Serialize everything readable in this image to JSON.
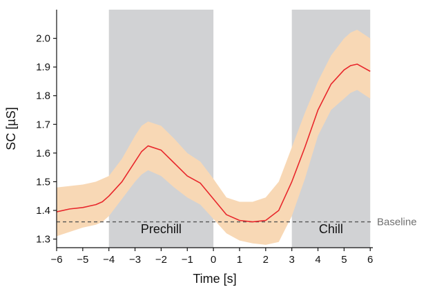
{
  "chart_data": {
    "type": "line",
    "title": "",
    "xlabel": "Time [s]",
    "ylabel": "SC [µS]",
    "xlim": [
      -6,
      6.1
    ],
    "ylim": [
      1.27,
      2.1
    ],
    "xticks": [
      -6,
      -5,
      -4,
      -3,
      -2,
      -1,
      0,
      1,
      2,
      3,
      4,
      5,
      6
    ],
    "xtick_labels": [
      "−6",
      "−5",
      "−4",
      "−3",
      "−2",
      "−1",
      "0",
      "1",
      "2",
      "3",
      "4",
      "5",
      "6"
    ],
    "yticks": [
      1.3,
      1.4,
      1.5,
      1.6,
      1.7,
      1.8,
      1.9,
      2.0
    ],
    "ytick_labels": [
      "1.3",
      "1.4",
      "1.5",
      "1.6",
      "1.7",
      "1.8",
      "1.9",
      "2.0"
    ],
    "grid": false,
    "shaded_regions": [
      {
        "label": "Prechill",
        "x_start": -4,
        "x_end": 0
      },
      {
        "label": "Chill",
        "x_start": 3,
        "x_end": 6
      }
    ],
    "baseline": {
      "label": "Baseline",
      "value": 1.36
    },
    "series": [
      {
        "x": [
          -6,
          -5.5,
          -5,
          -4.5,
          -4.25,
          -4,
          -3.5,
          -3,
          -2.75,
          -2.5,
          -2,
          -1.5,
          -1,
          -0.5,
          0,
          0.5,
          1,
          1.5,
          2,
          2.5,
          3,
          3.5,
          4,
          4.5,
          5,
          5.25,
          5.5,
          6
        ],
        "values": [
          1.395,
          1.405,
          1.41,
          1.42,
          1.43,
          1.45,
          1.5,
          1.57,
          1.605,
          1.625,
          1.61,
          1.565,
          1.52,
          1.495,
          1.44,
          1.385,
          1.365,
          1.36,
          1.365,
          1.4,
          1.5,
          1.62,
          1.75,
          1.84,
          1.89,
          1.905,
          1.91,
          1.885
        ],
        "ci_lower": [
          1.31,
          1.325,
          1.34,
          1.35,
          1.36,
          1.38,
          1.44,
          1.5,
          1.525,
          1.54,
          1.52,
          1.48,
          1.445,
          1.42,
          1.37,
          1.32,
          1.295,
          1.285,
          1.28,
          1.29,
          1.38,
          1.51,
          1.66,
          1.75,
          1.79,
          1.81,
          1.82,
          1.79
        ],
        "ci_upper": [
          1.48,
          1.485,
          1.49,
          1.5,
          1.51,
          1.52,
          1.58,
          1.66,
          1.695,
          1.71,
          1.695,
          1.65,
          1.6,
          1.57,
          1.51,
          1.445,
          1.43,
          1.43,
          1.445,
          1.5,
          1.62,
          1.74,
          1.85,
          1.94,
          2.0,
          2.02,
          2.03,
          2.0
        ]
      }
    ],
    "colors": {
      "line": "#e8262b",
      "ci_band": "#f8d8b5",
      "shaded_region": "#d1d2d4",
      "baseline": "#555555",
      "baseline_text": "#6f6f6f"
    }
  }
}
